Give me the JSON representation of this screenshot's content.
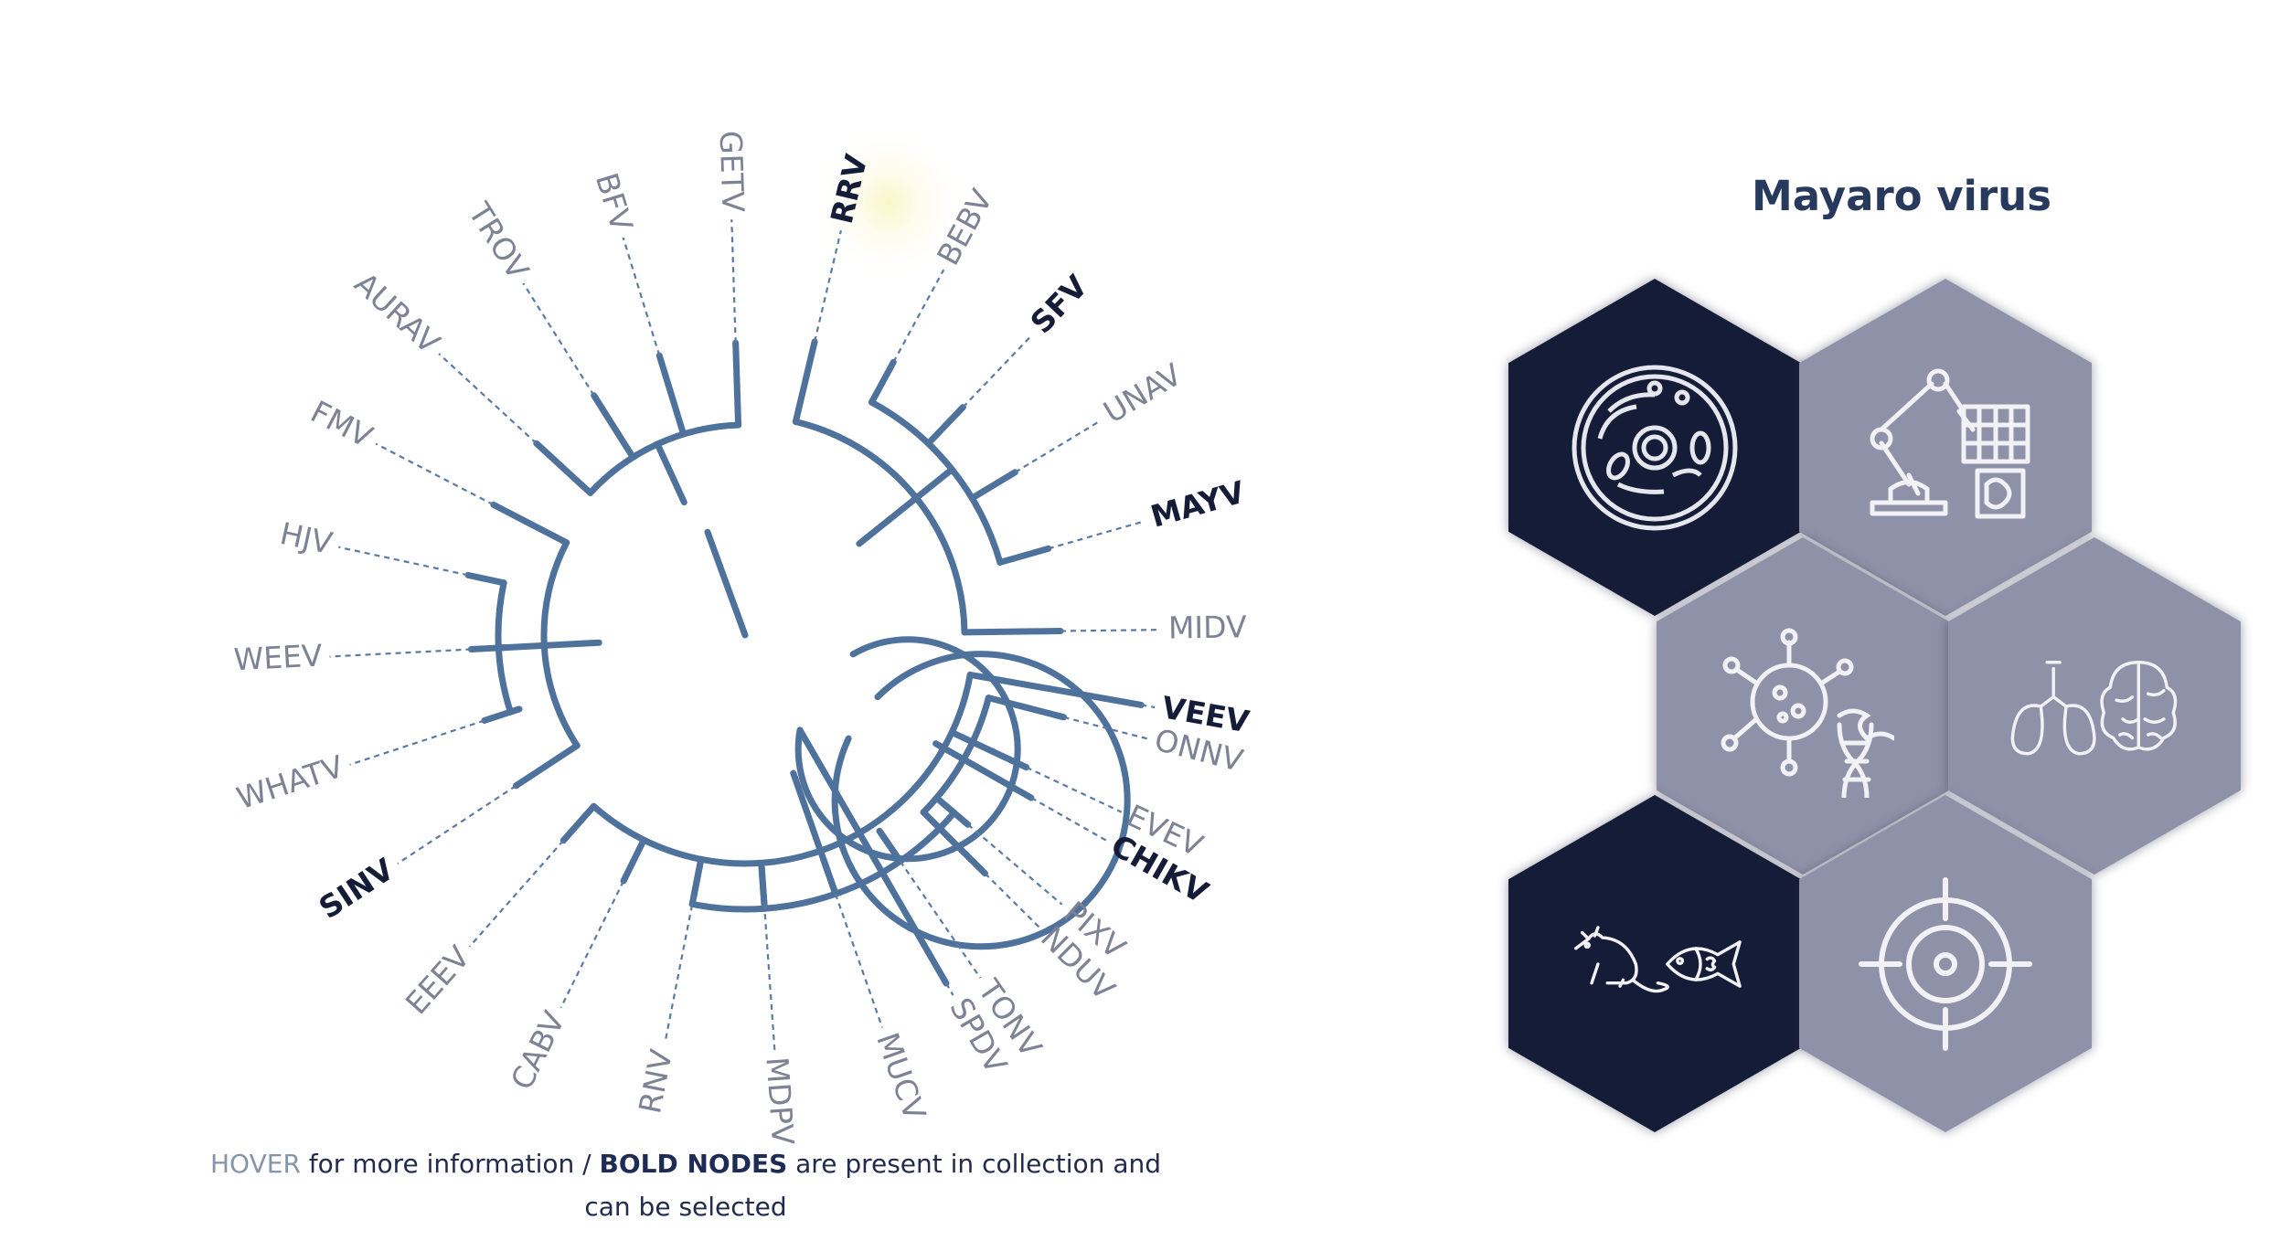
{
  "virus": {
    "title": "Mayaro virus"
  },
  "caption": {
    "hover": "HOVER",
    "part1": " for more information / ",
    "bold_nodes": "BOLD NODES",
    "part2": " are present in collection and can be selected"
  },
  "tree": {
    "labels": [
      {
        "name": "VEEV",
        "bold": true
      },
      {
        "name": "EVEV",
        "bold": false
      },
      {
        "name": "PIXV",
        "bold": false
      },
      {
        "name": "TONV",
        "bold": false
      },
      {
        "name": "MUCV",
        "bold": false
      },
      {
        "name": "MDPV",
        "bold": false
      },
      {
        "name": "RNV",
        "bold": false
      },
      {
        "name": "CABV",
        "bold": false
      },
      {
        "name": "EEEV",
        "bold": false
      },
      {
        "name": "SINV",
        "bold": true
      },
      {
        "name": "WHATV",
        "bold": false
      },
      {
        "name": "WEEV",
        "bold": false
      },
      {
        "name": "HJV",
        "bold": false
      },
      {
        "name": "FMV",
        "bold": false
      },
      {
        "name": "AURAV",
        "bold": false
      },
      {
        "name": "TROV",
        "bold": false
      },
      {
        "name": "BFV",
        "bold": false
      },
      {
        "name": "GETV",
        "bold": false
      },
      {
        "name": "RRV",
        "bold": true
      },
      {
        "name": "BEBV",
        "bold": false
      },
      {
        "name": "SFV",
        "bold": true
      },
      {
        "name": "UNAV",
        "bold": false
      },
      {
        "name": "MAYV",
        "bold": true,
        "highlighted": true
      },
      {
        "name": "MIDV",
        "bold": false
      },
      {
        "name": "ONNV",
        "bold": false
      },
      {
        "name": "CHIKV",
        "bold": true
      },
      {
        "name": "NDUV",
        "bold": false
      },
      {
        "name": "SPDV",
        "bold": false
      }
    ]
  },
  "tiles": [
    {
      "name": "cell-tile",
      "icon": "cell-icon",
      "style": "dark"
    },
    {
      "name": "lab-robot-tile",
      "icon": "lab-robot-icon",
      "style": "light"
    },
    {
      "name": "virus-dna-tile",
      "icon": "virus-dna-icon",
      "style": "light"
    },
    {
      "name": "organs-tile",
      "icon": "lungs-brain-icon",
      "style": "light"
    },
    {
      "name": "animal-models-tile",
      "icon": "rat-fish-icon",
      "style": "dark"
    },
    {
      "name": "target-tile",
      "icon": "target-icon",
      "style": "light"
    }
  ],
  "colors": {
    "accent_dark": "#151c37",
    "tile_light": "#8f91a8",
    "branch": "#4f729d",
    "label_regular": "#7d8294",
    "label_bold": "#141c38",
    "highlight_glow": "#fbf6c8"
  }
}
